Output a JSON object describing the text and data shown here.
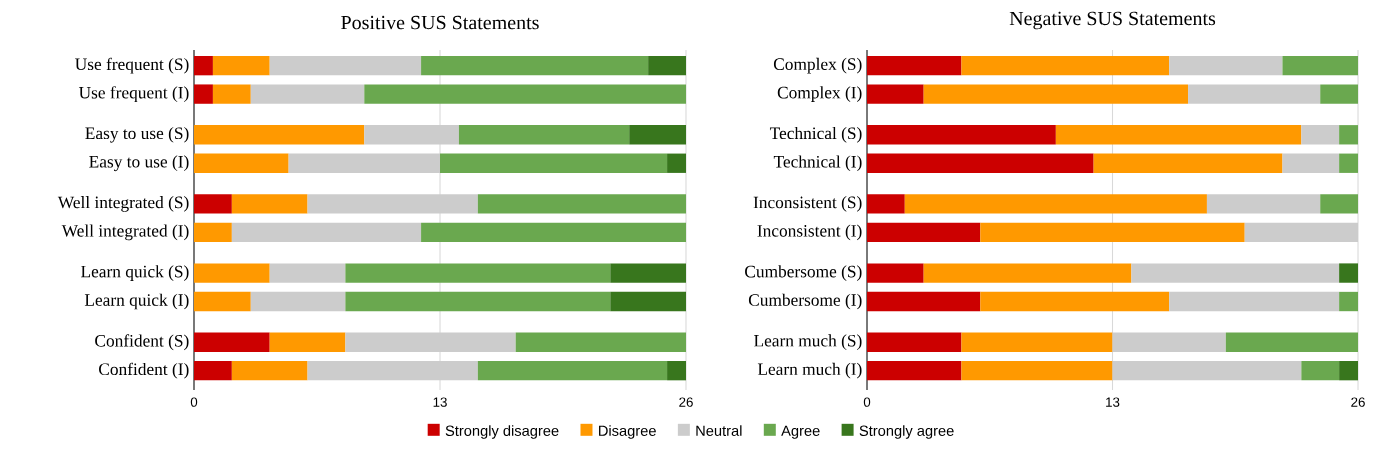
{
  "chart_data": [
    {
      "type": "bar",
      "title": "Positive SUS Statements",
      "orientation": "horizontal",
      "stacked": true,
      "xlim": [
        0,
        26
      ],
      "xticks": [
        0,
        13,
        26
      ],
      "grid": "x",
      "legend": "bottom",
      "categories": [
        "Use frequent (S)",
        "Use frequent (I)",
        "Easy to use (S)",
        "Easy to use (I)",
        "Well integrated (S)",
        "Well integrated (I)",
        "Learn quick (S)",
        "Learn quick (I)",
        "Confident (S)",
        "Confident (I)"
      ],
      "series": [
        {
          "name": "Strongly disagree",
          "color": "#cc0000",
          "values": [
            1,
            1,
            0,
            0,
            2,
            0,
            0,
            0,
            4,
            2
          ]
        },
        {
          "name": "Disagree",
          "color": "#ff9900",
          "values": [
            3,
            2,
            9,
            5,
            4,
            2,
            4,
            3,
            4,
            4
          ]
        },
        {
          "name": "Neutral",
          "color": "#cccccc",
          "values": [
            8,
            6,
            5,
            8,
            9,
            10,
            4,
            5,
            9,
            9
          ]
        },
        {
          "name": "Agree",
          "color": "#6aa84f",
          "values": [
            12,
            17,
            9,
            12,
            11,
            14,
            14,
            14,
            9,
            10
          ]
        },
        {
          "name": "Strongly agree",
          "color": "#38761d",
          "values": [
            2,
            0,
            3,
            1,
            0,
            0,
            4,
            4,
            0,
            1
          ]
        }
      ]
    },
    {
      "type": "bar",
      "title": "Negative SUS Statements",
      "orientation": "horizontal",
      "stacked": true,
      "xlim": [
        0,
        26
      ],
      "xticks": [
        0,
        13,
        26
      ],
      "grid": "x",
      "categories": [
        "Complex (S)",
        "Complex (I)",
        "Technical (S)",
        "Technical (I)",
        "Inconsistent (S)",
        "Inconsistent (I)",
        "Cumbersome (S)",
        "Cumbersome (I)",
        "Learn much (S)",
        "Learn much (I)"
      ],
      "series": [
        {
          "color": "#cc0000",
          "values": [
            5,
            3,
            10,
            12,
            2,
            6,
            3,
            6,
            5,
            5
          ]
        },
        {
          "color": "#ff9900",
          "values": [
            11,
            14,
            13,
            10,
            16,
            14,
            11,
            10,
            8,
            8
          ]
        },
        {
          "color": "#cccccc",
          "values": [
            6,
            7,
            2,
            3,
            6,
            6,
            11,
            9,
            6,
            10
          ]
        },
        {
          "color": "#6aa84f",
          "values": [
            4,
            2,
            1,
            1,
            2,
            0,
            0,
            1,
            7,
            2
          ]
        },
        {
          "color": "#38761d",
          "values": [
            0,
            0,
            0,
            0,
            0,
            0,
            1,
            0,
            0,
            1
          ]
        }
      ]
    }
  ]
}
